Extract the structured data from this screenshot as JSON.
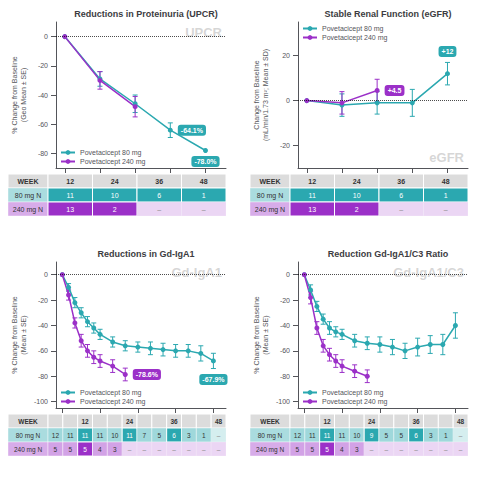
{
  "chart_data": [
    {
      "type": "line",
      "title": "Reductions in Proteinuria (UPCR)",
      "ylabel": "% Change from Baseline\n(Geo Mean ± SE)",
      "watermark": "UPCR",
      "xlim": [
        -3,
        55
      ],
      "xticks": [
        0,
        12,
        24,
        36,
        48
      ],
      "ylim": [
        -90,
        10
      ],
      "yticks": [
        0,
        -20,
        -40,
        -60,
        -80
      ],
      "tick_labels": "y",
      "grid": false,
      "legend": "lower left",
      "marker": "circle",
      "hline": 0,
      "series": [
        {
          "name": "Povetacicept 80 mg",
          "color": "#2BA8B0",
          "x": [
            0,
            12,
            24,
            36,
            48
          ],
          "values": [
            0,
            -29,
            -46,
            -64.1,
            -78.0
          ],
          "errors": [
            0,
            5,
            6,
            5,
            0
          ]
        },
        {
          "name": "Povetacicept 240 mg",
          "color": "#9B30C8",
          "x": [
            0,
            12,
            24
          ],
          "values": [
            0,
            -30,
            -48
          ],
          "errors": [
            0,
            6,
            7
          ]
        }
      ],
      "annotations": [
        {
          "text": "-64.1%",
          "series": "Povetacicept 80 mg",
          "x": 36
        },
        {
          "text": "-78.0%",
          "series": "Povetacicept 80 mg",
          "x": 48
        }
      ],
      "table": {
        "columns": [
          "WEEK",
          "12",
          "24",
          "36",
          "48"
        ],
        "rows": [
          {
            "label": "80 mg N",
            "values": [
              11,
              10,
              6,
              1
            ]
          },
          {
            "label": "240 mg N",
            "values": [
              13,
              2,
              "–",
              "–"
            ]
          }
        ]
      }
    },
    {
      "type": "line",
      "title": "Stable Renal Function (eGFR)",
      "ylabel": "Change from Baseline\n(mL/min/1.73 m²; Mean ± SD)",
      "watermark": "eGFR",
      "xlim": [
        -3,
        55
      ],
      "xticks": [
        0,
        12,
        24,
        36,
        48
      ],
      "ylim": [
        -30,
        35
      ],
      "yticks": [
        20,
        0,
        -20
      ],
      "tick_labels": "y",
      "grid": false,
      "legend": "upper left",
      "marker": "circle",
      "hline": 0,
      "series": [
        {
          "name": "Povetacicept 80 mg",
          "color": "#2BA8B0",
          "x": [
            0,
            12,
            24,
            36,
            48
          ],
          "values": [
            0,
            -2,
            -1,
            -1,
            12
          ],
          "errors": [
            0,
            5,
            5,
            6,
            5
          ]
        },
        {
          "name": "Povetacicept 240 mg",
          "color": "#9B30C8",
          "x": [
            0,
            12,
            24
          ],
          "values": [
            0,
            -1,
            4.5
          ],
          "errors": [
            0,
            5,
            5
          ]
        }
      ],
      "annotations": [
        {
          "text": "+4.5",
          "series": "Povetacicept 240 mg",
          "x": 24
        },
        {
          "text": "+12",
          "series": "Povetacicept 80 mg",
          "x": 48
        }
      ],
      "table": {
        "columns": [
          "WEEK",
          "12",
          "24",
          "36",
          "48"
        ],
        "rows": [
          {
            "label": "80 mg N",
            "values": [
              11,
              10,
              6,
              1
            ]
          },
          {
            "label": "240 mg N",
            "values": [
              13,
              2,
              "–",
              "–"
            ]
          }
        ]
      }
    },
    {
      "type": "line",
      "title": "Reductions in Gd-IgA1",
      "ylabel": "% Change from Baseline\n(Mean ± SE)",
      "watermark": "Gd-IgA1",
      "xlim": [
        -2,
        52
      ],
      "xticks": [
        0,
        12,
        24,
        36,
        48
      ],
      "ylim": [
        -105,
        10
      ],
      "yticks": [
        0,
        -20,
        -40,
        -60,
        -80,
        -100
      ],
      "tick_labels": "y",
      "grid": false,
      "legend": "lower left",
      "marker": "circle",
      "hline": 0,
      "series": [
        {
          "name": "Povetacicept 80 mg",
          "color": "#2BA8B0",
          "x": [
            0,
            2,
            4,
            6,
            8,
            10,
            12,
            16,
            20,
            24,
            28,
            32,
            36,
            40,
            44,
            48
          ],
          "values": [
            0,
            -10,
            -22,
            -30,
            -37,
            -42,
            -47,
            -53,
            -56,
            -57,
            -58,
            -59,
            -60,
            -60,
            -62,
            -67.9
          ],
          "errors": [
            0,
            3,
            4,
            4,
            4,
            4,
            4,
            4,
            4,
            4,
            5,
            5,
            5,
            5,
            6,
            6
          ]
        },
        {
          "name": "Povetacicept 240 mg",
          "color": "#9B30C8",
          "x": [
            0,
            2,
            4,
            6,
            8,
            10,
            12,
            16,
            20
          ],
          "values": [
            0,
            -16,
            -38,
            -52,
            -60,
            -65,
            -68,
            -72,
            -78.6
          ],
          "errors": [
            0,
            4,
            4,
            5,
            5,
            5,
            5,
            5,
            5
          ]
        }
      ],
      "annotations": [
        {
          "text": "-67.9%",
          "series": "Povetacicept 80 mg",
          "x": 48
        },
        {
          "text": "-78.6%",
          "series": "Povetacicept 240 mg",
          "x": 20
        }
      ],
      "table": {
        "columns": [
          "WEEK",
          null,
          null,
          "12",
          null,
          null,
          "24",
          null,
          null,
          "36",
          null,
          null,
          "48"
        ],
        "rows": [
          {
            "label": "80 mg N",
            "values": [
              12,
              11,
              11,
              11,
              10,
              11,
              7,
              5,
              6,
              3,
              1,
              "–"
            ]
          },
          {
            "label": "240 mg N",
            "values": [
              5,
              5,
              5,
              4,
              3,
              "–",
              "–",
              "–",
              "–",
              "–",
              "–",
              "–"
            ]
          }
        ]
      }
    },
    {
      "type": "line",
      "title": "Reduction Gd-IgA1/C3 Ratio",
      "ylabel": "% Change from Baseline\n(Mean ± SE)",
      "watermark": "Gd-IgA1/C3",
      "xlim": [
        -2,
        52
      ],
      "xticks": [
        0,
        12,
        24,
        36,
        48
      ],
      "ylim": [
        -105,
        10
      ],
      "yticks": [
        0,
        -20,
        -40,
        -60,
        -80,
        -100
      ],
      "tick_labels": "y",
      "grid": false,
      "legend": "lower left",
      "marker": "circle",
      "hline": 0,
      "series": [
        {
          "name": "Povetacicept 80 mg",
          "color": "#2BA8B0",
          "x": [
            0,
            2,
            4,
            6,
            8,
            10,
            12,
            16,
            20,
            24,
            28,
            32,
            36,
            40,
            44,
            48
          ],
          "values": [
            0,
            -12,
            -25,
            -35,
            -42,
            -45,
            -47,
            -52,
            -54,
            -55,
            -57,
            -60,
            -57,
            -55,
            -55,
            -40
          ],
          "errors": [
            0,
            4,
            4,
            4,
            5,
            4,
            4,
            5,
            5,
            6,
            6,
            6,
            7,
            7,
            8,
            10
          ]
        },
        {
          "name": "Povetacicept 240 mg",
          "color": "#9B30C8",
          "x": [
            0,
            2,
            4,
            6,
            8,
            10,
            12,
            16,
            20
          ],
          "values": [
            0,
            -18,
            -42,
            -56,
            -63,
            -68,
            -72,
            -76,
            -80
          ],
          "errors": [
            0,
            5,
            5,
            5,
            5,
            5,
            5,
            5,
            5
          ]
        }
      ],
      "table": {
        "columns": [
          "WEEK",
          null,
          null,
          "12",
          null,
          null,
          "24",
          null,
          null,
          "36",
          null,
          null,
          "48"
        ],
        "rows": [
          {
            "label": "80 mg N",
            "values": [
              12,
              11,
              11,
              11,
              10,
              9,
              5,
              5,
              6,
              3,
              1,
              "–"
            ]
          },
          {
            "label": "240 mg N",
            "values": [
              5,
              5,
              5,
              4,
              3,
              "–",
              "–",
              "–",
              "–",
              "–",
              "–",
              "–"
            ]
          }
        ]
      }
    }
  ]
}
